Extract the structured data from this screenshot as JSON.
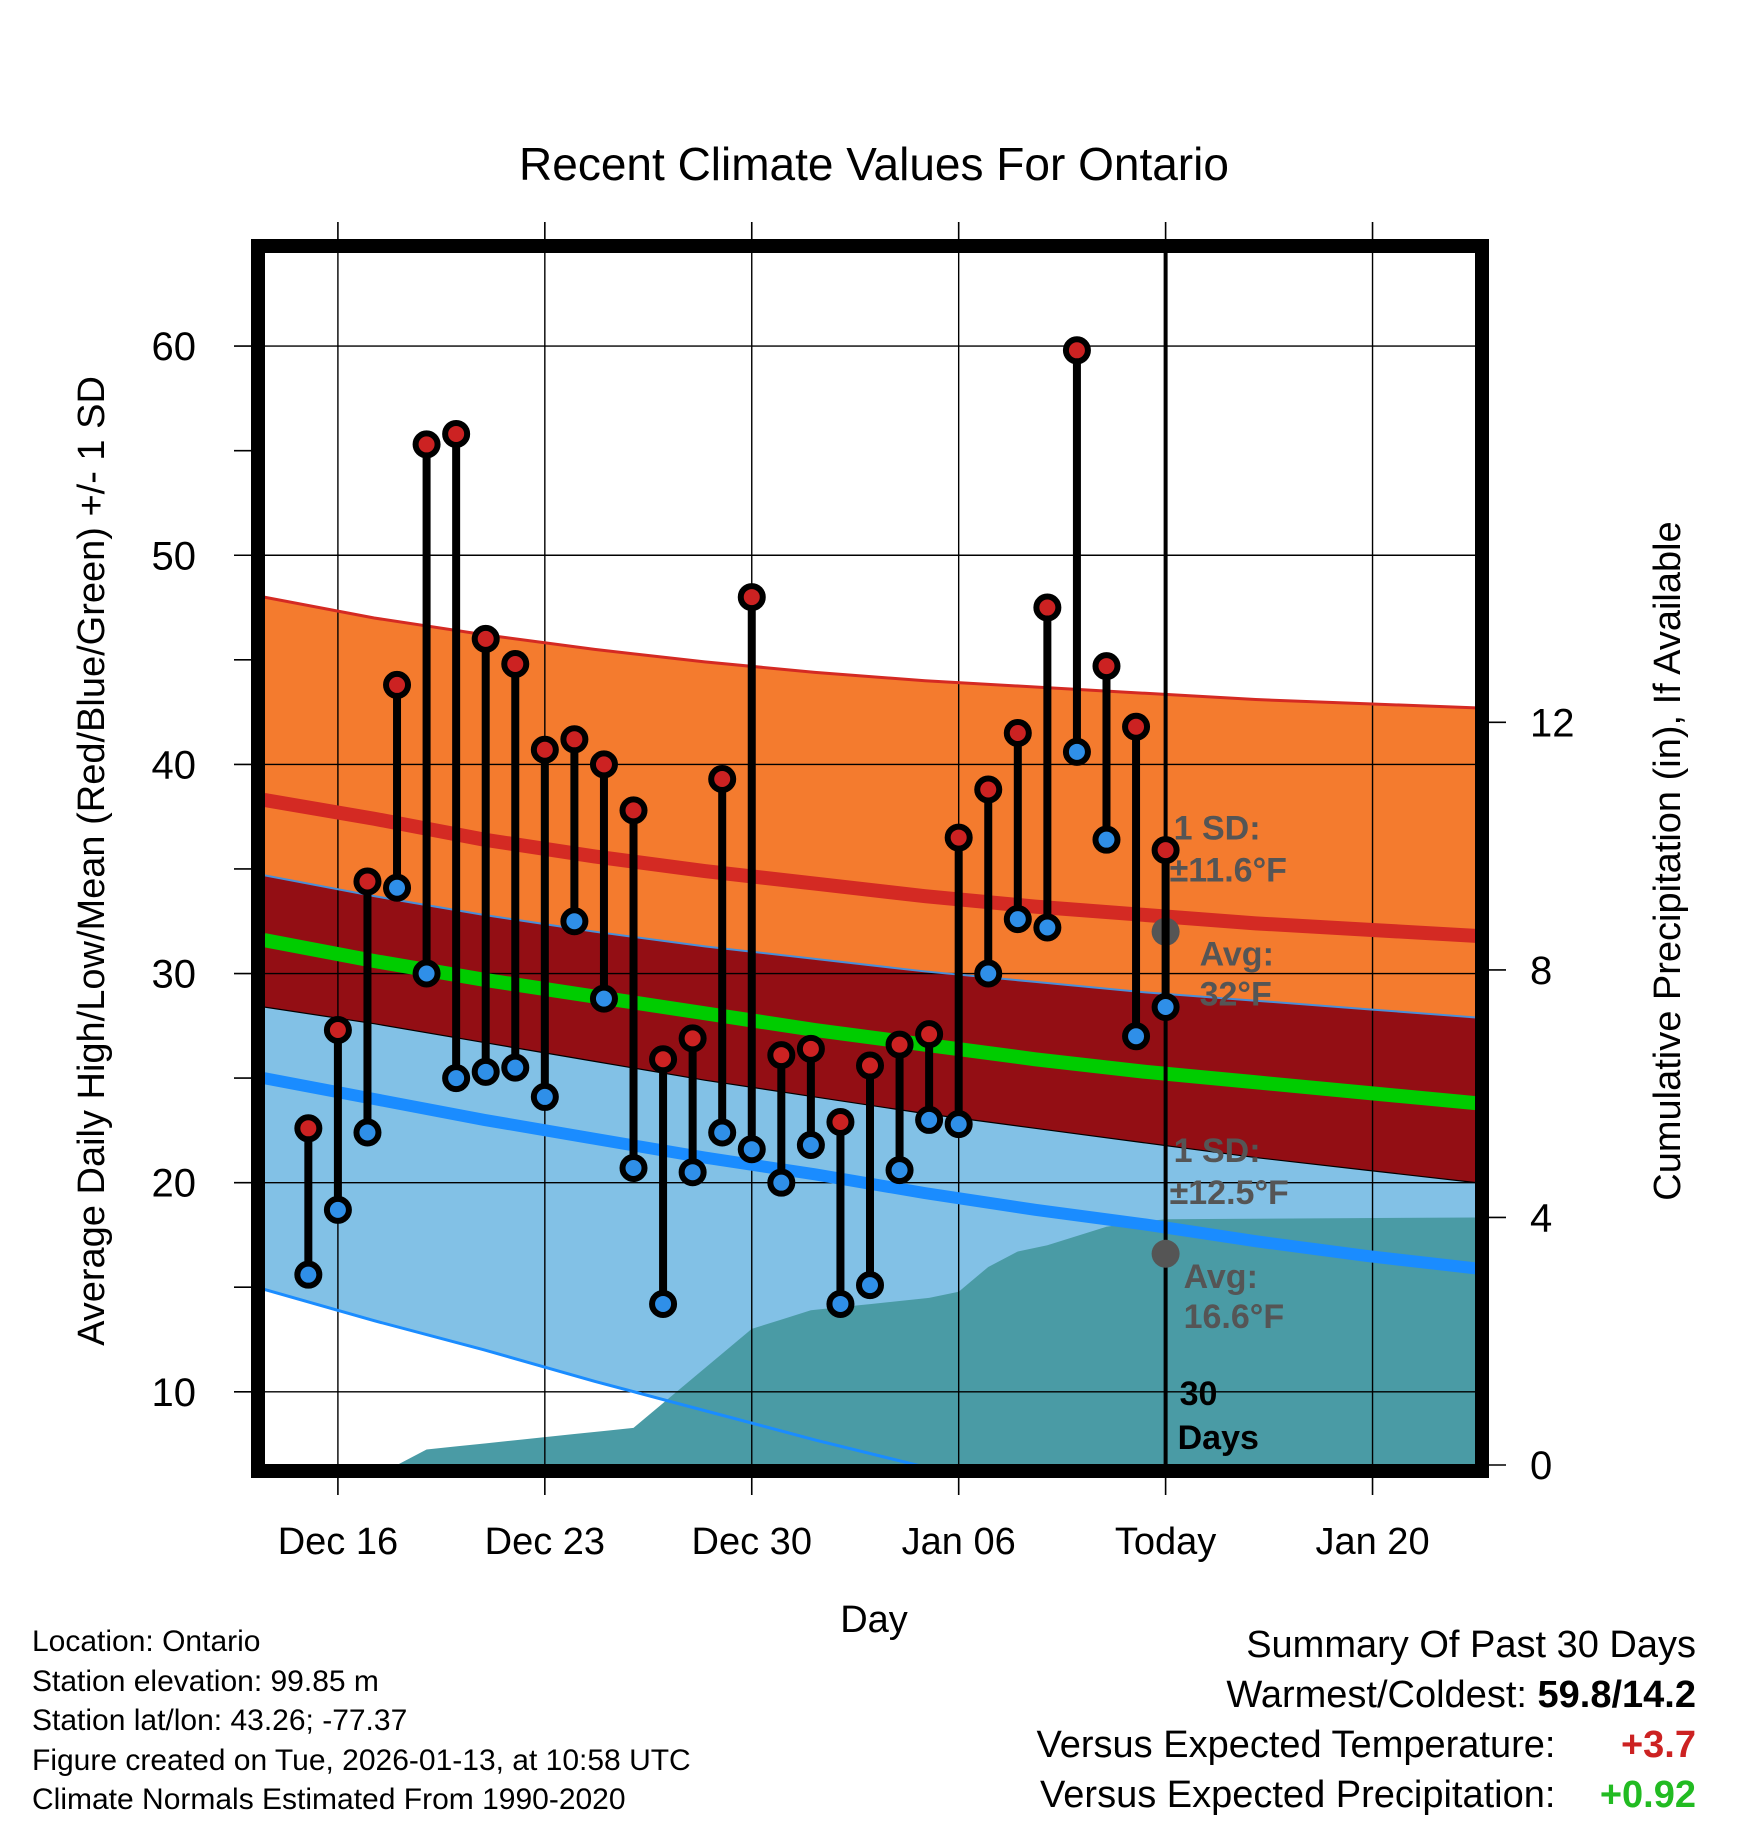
{
  "chart_data": {
    "type": "line",
    "title": "Recent Climate Values For Ontario",
    "xlabel": "Day",
    "ylabel_left": "Average Daily High/Low/Mean (Red/Blue/Green) +/- 1 SD",
    "ylabel_right": "Cumulative Precipitation (in), If Available",
    "ylim": [
      6.5,
      64.5
    ],
    "ylim_right": [
      0,
      19.6
    ],
    "xlim": [
      -0.5,
      40.5
    ],
    "y_ticks": [
      10,
      20,
      30,
      40,
      50,
      60
    ],
    "y_ticks_right": [
      0,
      4,
      8,
      12
    ],
    "x_ticks": [
      {
        "day": 2,
        "label": "Dec 16"
      },
      {
        "day": 9,
        "label": "Dec 23"
      },
      {
        "day": 16,
        "label": "Dec 30"
      },
      {
        "day": 23,
        "label": "Jan 06"
      },
      {
        "day": 30,
        "label": "Today"
      },
      {
        "day": 37,
        "label": "Jan 20"
      }
    ],
    "grid": true,
    "normals": {
      "day_range": [
        -0.5,
        40.5
      ],
      "avg_high": [
        38.3,
        37.4,
        36.4,
        35.6,
        34.9,
        34.3,
        33.7,
        33.2,
        32.8,
        32.4,
        32.1,
        31.8
      ],
      "high_upper": [
        48.0,
        47.0,
        46.2,
        45.5,
        44.9,
        44.4,
        44.0,
        43.7,
        43.4,
        43.1,
        42.9,
        42.7
      ],
      "high_lower": [
        34.7,
        33.7,
        32.8,
        32.0,
        31.3,
        30.7,
        30.1,
        29.6,
        29.1,
        28.7,
        28.3,
        27.9
      ],
      "avg_mean": [
        31.6,
        30.6,
        29.7,
        28.9,
        28.1,
        27.3,
        26.6,
        25.9,
        25.3,
        24.8,
        24.3,
        23.8
      ],
      "avg_low": [
        25.0,
        24.0,
        23.0,
        22.1,
        21.2,
        20.4,
        19.5,
        18.7,
        18.0,
        17.2,
        16.5,
        15.9
      ],
      "low_upper": [
        28.4,
        27.6,
        26.7,
        25.8,
        24.9,
        24.1,
        23.3,
        22.6,
        21.9,
        21.2,
        20.6,
        20.0
      ],
      "low_lower": [
        14.9,
        13.4,
        12.0,
        10.5,
        9.1,
        7.7,
        6.4,
        5.0,
        3.7,
        2.5,
        1.3,
        0.1
      ]
    },
    "series": [
      {
        "name": "Daily High",
        "color": "#cc2222",
        "days": [
          1,
          2,
          3,
          4,
          5,
          6,
          7,
          8,
          9,
          10,
          11,
          12,
          13,
          14,
          15,
          16,
          17,
          18,
          19,
          20,
          21,
          22,
          23,
          24,
          25,
          26,
          27,
          28,
          29,
          30
        ],
        "values": [
          22.6,
          27.3,
          34.4,
          43.8,
          55.3,
          55.8,
          46.0,
          44.8,
          40.7,
          41.2,
          40.0,
          37.8,
          25.9,
          26.9,
          39.3,
          48.0,
          26.1,
          26.4,
          22.9,
          25.6,
          26.6,
          27.1,
          36.5,
          38.8,
          41.5,
          47.5,
          59.8,
          44.7,
          41.8,
          35.9
        ]
      },
      {
        "name": "Daily Low",
        "color": "#2f8fe8",
        "days": [
          1,
          2,
          3,
          4,
          5,
          6,
          7,
          8,
          9,
          10,
          11,
          12,
          13,
          14,
          15,
          16,
          17,
          18,
          19,
          20,
          21,
          22,
          23,
          24,
          25,
          26,
          27,
          28,
          29,
          30
        ],
        "values": [
          15.6,
          18.7,
          22.4,
          34.1,
          30.0,
          25.0,
          25.3,
          25.5,
          24.1,
          32.5,
          28.8,
          20.7,
          14.2,
          20.5,
          22.4,
          21.6,
          20.0,
          21.8,
          14.2,
          15.1,
          20.6,
          23.0,
          22.8,
          30.0,
          32.6,
          32.2,
          40.6,
          36.4,
          27.0,
          28.4
        ]
      }
    ],
    "precipitation": {
      "name": "Cumulative Precipitation",
      "color": "#4a9ba5",
      "days": [
        -0.5,
        4,
        5,
        6,
        7,
        8,
        9,
        10,
        11,
        12,
        13,
        14,
        15,
        16,
        17,
        18,
        19,
        20,
        21,
        22,
        23,
        24,
        25,
        26,
        27,
        28,
        29,
        30,
        40.5
      ],
      "values": [
        0,
        0,
        0.25,
        0.3,
        0.35,
        0.4,
        0.45,
        0.5,
        0.55,
        0.6,
        1.0,
        1.4,
        1.8,
        2.2,
        2.35,
        2.5,
        2.55,
        2.6,
        2.65,
        2.7,
        2.8,
        3.2,
        3.45,
        3.55,
        3.7,
        3.85,
        3.92,
        3.97,
        4.0
      ]
    },
    "annotations": [
      {
        "label_line1": "1 SD:",
        "label_line2": "±11.6°F",
        "near": "high"
      },
      {
        "label_line1": "Avg:",
        "label_line2": "32°F",
        "value": 32.0
      },
      {
        "label_line1": "1 SD:",
        "label_line2": "±12.5°F",
        "near": "low"
      },
      {
        "label_line1": "Avg:",
        "label_line2": "16.6°F",
        "value": 16.6
      },
      {
        "label_line1": "30",
        "label_line2": "Days"
      }
    ]
  },
  "footer_left": {
    "location": "Location: Ontario",
    "elevation": "Station elevation: 99.85 m",
    "latlon": "Station lat/lon: 43.26; -77.37",
    "created": "Figure created on Tue, 2026-01-13, at 10:58 UTC",
    "normals": "Climate Normals Estimated From 1990-2020"
  },
  "summary": {
    "heading": "Summary Of Past 30 Days",
    "warmest_label": "Warmest/Coldest:",
    "warmest_value": "59.8/14.2",
    "temp_label": "Versus Expected Temperature:",
    "temp_value": "+3.7",
    "precip_label": "Versus Expected Precipitation:",
    "precip_value": "+0.92"
  },
  "colors": {
    "high_band": "#f47b2e",
    "high_line": "#d42a23",
    "mean_band": "#930e14",
    "mean_line": "#00cc00",
    "low_band": "#82c1e6",
    "low_line": "#1a8cff",
    "precip": "#4a9ba5"
  }
}
